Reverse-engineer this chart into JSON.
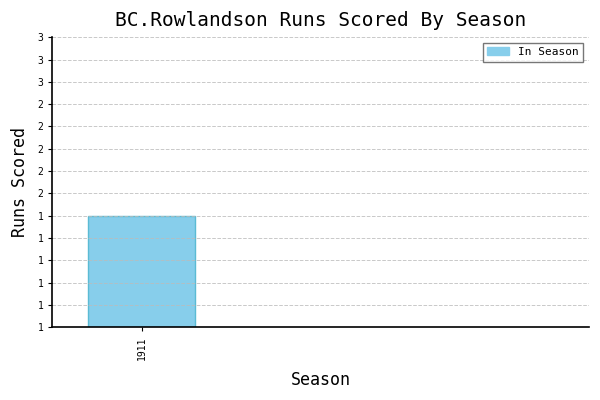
{
  "title": "BC.Rowlandson Runs Scored By Season",
  "xlabel": "Season",
  "ylabel": "Runs Scored",
  "seasons": [
    "1911"
  ],
  "runs": [
    2
  ],
  "bar_color": "#87CEEB",
  "bar_edgecolor": "#5bbbd4",
  "ylim_min": 1.0,
  "ylim_max": 3.6,
  "ytick_interval": 0.2,
  "legend_label": "In Season",
  "legend_patch_color": "#87CEEB",
  "background_color": "#ffffff",
  "grid_color": "#bbbbbb",
  "font_family": "monospace",
  "title_fontsize": 14,
  "axis_label_fontsize": 12,
  "tick_fontsize": 7,
  "bar_width": 0.6
}
